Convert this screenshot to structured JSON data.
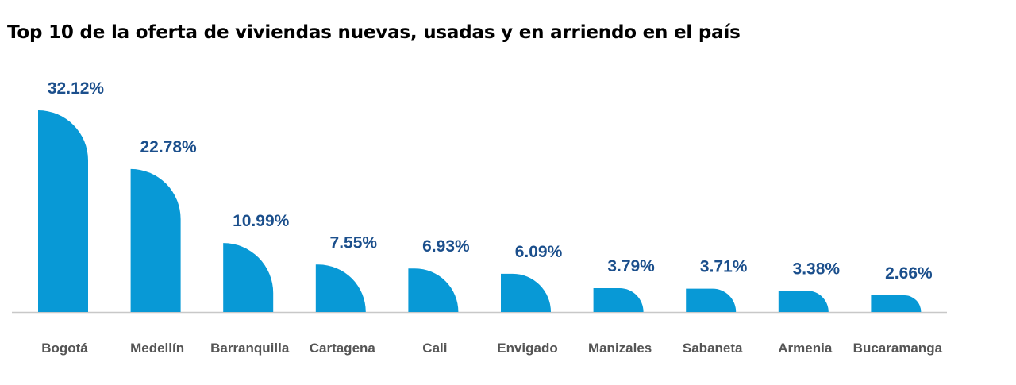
{
  "title": "Top 10 de la oferta de viviendas nuevas, usadas y en arriendo en el país",
  "colors": {
    "bar": "#0899d6",
    "value_label": "#1b4f8c",
    "category_label": "#555555",
    "baseline": "#c8c8c8"
  },
  "chart_data": {
    "type": "bar",
    "title": "Top 10 de la oferta de viviendas nuevas, usadas y en arriendo en el país",
    "xlabel": "",
    "ylabel": "",
    "ylim": [
      0,
      32.12
    ],
    "grid": false,
    "categories": [
      "Bogotá",
      "Medellín",
      "Barranquilla",
      "Cartagena",
      "Cali",
      "Envigado",
      "Manizales",
      "Sabaneta",
      "Armenia",
      "Bucaramanga"
    ],
    "values": [
      32.12,
      22.78,
      10.99,
      7.55,
      6.93,
      6.09,
      3.79,
      3.71,
      3.38,
      2.66
    ],
    "value_labels": [
      "32.12%",
      "22.78%",
      "10.99%",
      "7.55%",
      "6.93%",
      "6.09%",
      "3.79%",
      "3.71%",
      "3.38%",
      "2.66%"
    ]
  }
}
